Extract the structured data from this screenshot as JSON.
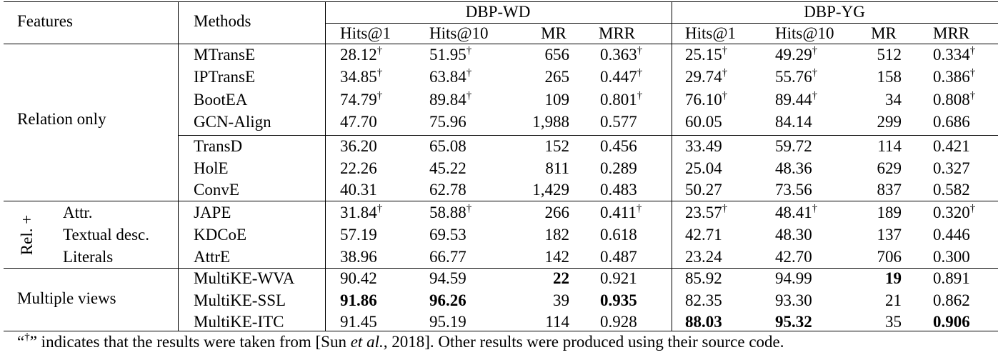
{
  "header": {
    "features": "Features",
    "methods": "Methods",
    "groups": [
      "DBP-WD",
      "DBP-YG"
    ],
    "metrics": [
      "Hits@1",
      "Hits@10",
      "MR",
      "MRR"
    ]
  },
  "features": {
    "relation_only": "Relation only",
    "rel_plus": "Rel. +",
    "attr": "Attr.",
    "textual_desc": "Textual desc.",
    "literals": "Literals",
    "multiple_views": "Multiple views"
  },
  "dagger": "†",
  "rows": [
    {
      "method": "MTransE",
      "cells": [
        {
          "v": "28.12",
          "d": true
        },
        {
          "v": "51.95",
          "d": true
        },
        {
          "v": "656"
        },
        {
          "v": "0.363",
          "d": true
        },
        {
          "v": "25.15",
          "d": true
        },
        {
          "v": "49.29",
          "d": true
        },
        {
          "v": "512"
        },
        {
          "v": "0.334",
          "d": true
        }
      ]
    },
    {
      "method": "IPTransE",
      "cells": [
        {
          "v": "34.85",
          "d": true
        },
        {
          "v": "63.84",
          "d": true
        },
        {
          "v": "265"
        },
        {
          "v": "0.447",
          "d": true
        },
        {
          "v": "29.74",
          "d": true
        },
        {
          "v": "55.76",
          "d": true
        },
        {
          "v": "158"
        },
        {
          "v": "0.386",
          "d": true
        }
      ]
    },
    {
      "method": "BootEA",
      "cells": [
        {
          "v": "74.79",
          "d": true
        },
        {
          "v": "89.84",
          "d": true
        },
        {
          "v": "109"
        },
        {
          "v": "0.801",
          "d": true
        },
        {
          "v": "76.10",
          "d": true
        },
        {
          "v": "89.44",
          "d": true
        },
        {
          "v": "34"
        },
        {
          "v": "0.808",
          "d": true
        }
      ]
    },
    {
      "method": "GCN-Align",
      "cells": [
        {
          "v": "47.70"
        },
        {
          "v": "75.96"
        },
        {
          "v": "1,988"
        },
        {
          "v": "0.577"
        },
        {
          "v": "60.05"
        },
        {
          "v": "84.14"
        },
        {
          "v": "299"
        },
        {
          "v": "0.686"
        }
      ]
    },
    {
      "method": "TransD",
      "cells": [
        {
          "v": "36.20"
        },
        {
          "v": "65.08"
        },
        {
          "v": "152"
        },
        {
          "v": "0.456"
        },
        {
          "v": "33.49"
        },
        {
          "v": "59.72"
        },
        {
          "v": "114"
        },
        {
          "v": "0.421"
        }
      ]
    },
    {
      "method": "HolE",
      "cells": [
        {
          "v": "22.26"
        },
        {
          "v": "45.22"
        },
        {
          "v": "811"
        },
        {
          "v": "0.289"
        },
        {
          "v": "25.04"
        },
        {
          "v": "48.36"
        },
        {
          "v": "629"
        },
        {
          "v": "0.327"
        }
      ]
    },
    {
      "method": "ConvE",
      "cells": [
        {
          "v": "40.31"
        },
        {
          "v": "62.78"
        },
        {
          "v": "1,429"
        },
        {
          "v": "0.483"
        },
        {
          "v": "50.27"
        },
        {
          "v": "73.56"
        },
        {
          "v": "837"
        },
        {
          "v": "0.582"
        }
      ]
    },
    {
      "method": "JAPE",
      "cells": [
        {
          "v": "31.84",
          "d": true
        },
        {
          "v": "58.88",
          "d": true
        },
        {
          "v": "266"
        },
        {
          "v": "0.411",
          "d": true
        },
        {
          "v": "23.57",
          "d": true
        },
        {
          "v": "48.41",
          "d": true
        },
        {
          "v": "189"
        },
        {
          "v": "0.320",
          "d": true
        }
      ]
    },
    {
      "method": "KDCoE",
      "cells": [
        {
          "v": "57.19"
        },
        {
          "v": "69.53"
        },
        {
          "v": "182"
        },
        {
          "v": "0.618"
        },
        {
          "v": "42.71"
        },
        {
          "v": "48.30"
        },
        {
          "v": "137"
        },
        {
          "v": "0.446"
        }
      ]
    },
    {
      "method": "AttrE",
      "cells": [
        {
          "v": "38.96"
        },
        {
          "v": "66.77"
        },
        {
          "v": "142"
        },
        {
          "v": "0.487"
        },
        {
          "v": "23.24"
        },
        {
          "v": "42.70"
        },
        {
          "v": "706"
        },
        {
          "v": "0.300"
        }
      ]
    },
    {
      "method": "MultiKE-WVA",
      "cells": [
        {
          "v": "90.42"
        },
        {
          "v": "94.59"
        },
        {
          "v": "22",
          "b": true
        },
        {
          "v": "0.921"
        },
        {
          "v": "85.92"
        },
        {
          "v": "94.99"
        },
        {
          "v": "19",
          "b": true
        },
        {
          "v": "0.891"
        }
      ]
    },
    {
      "method": "MultiKE-SSL",
      "cells": [
        {
          "v": "91.86",
          "b": true
        },
        {
          "v": "96.26",
          "b": true
        },
        {
          "v": "39"
        },
        {
          "v": "0.935",
          "b": true
        },
        {
          "v": "82.35"
        },
        {
          "v": "93.30"
        },
        {
          "v": "21"
        },
        {
          "v": "0.862"
        }
      ]
    },
    {
      "method": "MultiKE-ITC",
      "cells": [
        {
          "v": "91.45"
        },
        {
          "v": "95.19"
        },
        {
          "v": "114"
        },
        {
          "v": "0.928"
        },
        {
          "v": "88.03",
          "b": true
        },
        {
          "v": "95.32",
          "b": true
        },
        {
          "v": "35"
        },
        {
          "v": "0.906",
          "b": true
        }
      ]
    }
  ],
  "footnote": {
    "open_quote": "“",
    "mark": "†",
    "text_before": "” indicates that the results were taken from  [Sun ",
    "italic": "et al.",
    "text_after": ", 2018]. Other results were produced using their source code."
  }
}
